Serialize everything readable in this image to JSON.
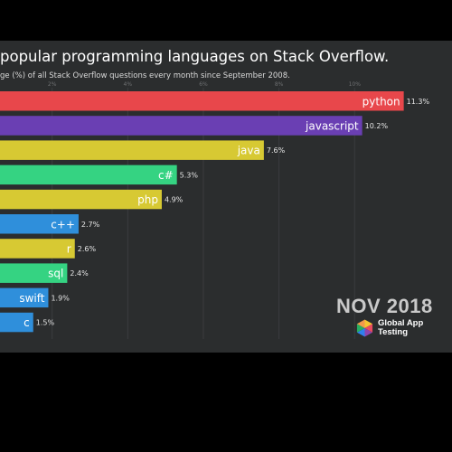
{
  "chart_data": {
    "type": "bar",
    "title": "popular programming languages on Stack Overflow.",
    "subtitle": "ge (%) of all Stack Overflow questions every month since September 2008.",
    "categories": [
      "python",
      "javascript",
      "java",
      "c#",
      "php",
      "c++",
      "r",
      "sql",
      "swift",
      "c"
    ],
    "values": [
      11.3,
      10.2,
      7.6,
      5.3,
      4.9,
      2.7,
      2.6,
      2.4,
      1.9,
      1.5
    ],
    "value_labels": [
      "11.3%",
      "10.2%",
      "7.6%",
      "5.3%",
      "4.9%",
      "2.7%",
      "2.6%",
      "2.4%",
      "1.9%",
      "1.5%"
    ],
    "colors": [
      "#e8474b",
      "#6a3fb3",
      "#d7c933",
      "#35d382",
      "#d7c933",
      "#2f8fdb",
      "#d7c933",
      "#35d382",
      "#2f8fdb",
      "#2f8fdb"
    ],
    "xlim": [
      0,
      11.5
    ],
    "x_ticks": [
      2,
      4,
      6,
      8,
      10
    ],
    "x_tick_labels": [
      "2%",
      "4%",
      "6%",
      "8%",
      "10%"
    ],
    "grid": true,
    "date": "NOV 2018",
    "brand": "Global App Testing"
  }
}
